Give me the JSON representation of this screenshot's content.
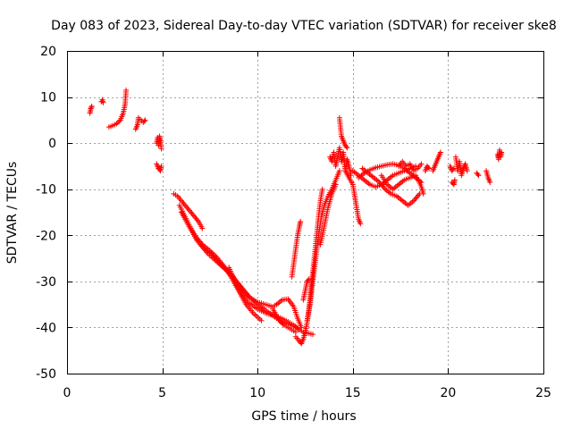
{
  "chart_data": {
    "type": "scatter",
    "title": "Day 083 of 2023, Sidereal Day-to-day VTEC variation (SDTVAR) for receiver ske8",
    "xlabel": "GPS time / hours",
    "ylabel": "SDTVAR / TECUs",
    "xlim": [
      0,
      25
    ],
    "ylim": [
      -50,
      20
    ],
    "xticks": [
      0,
      5,
      10,
      15,
      20,
      25
    ],
    "yticks": [
      -50,
      -40,
      -30,
      -20,
      -10,
      0,
      10,
      20
    ],
    "grid": true,
    "marker": "+",
    "color": "#ff0000",
    "series": [
      {
        "name": "SDTVAR",
        "segments": [
          [
            [
              1.2,
              6.5
            ],
            [
              1.25,
              7.5
            ],
            [
              1.3,
              8.0
            ]
          ],
          [
            [
              1.8,
              9.0
            ],
            [
              1.85,
              9.4
            ],
            [
              1.9,
              8.8
            ]
          ],
          [
            [
              2.2,
              3.5
            ],
            [
              2.4,
              3.8
            ],
            [
              2.6,
              4.2
            ],
            [
              2.8,
              5.0
            ],
            [
              2.95,
              6.5
            ],
            [
              3.05,
              8.5
            ],
            [
              3.1,
              11.5
            ]
          ],
          [
            [
              3.6,
              3.0
            ],
            [
              3.7,
              4.0
            ],
            [
              3.75,
              5.5
            ],
            [
              4.0,
              4.5
            ],
            [
              4.1,
              5.0
            ]
          ],
          [
            [
              4.7,
              0.0
            ],
            [
              4.75,
              1.2
            ],
            [
              4.8,
              -0.5
            ],
            [
              4.85,
              1.5
            ],
            [
              4.9,
              0.5
            ],
            [
              4.95,
              -1.2
            ]
          ],
          [
            [
              4.7,
              -4.5
            ],
            [
              4.8,
              -5.5
            ],
            [
              4.9,
              -6.0
            ],
            [
              4.95,
              -5.0
            ]
          ],
          [
            [
              5.6,
              -11.0
            ],
            [
              5.8,
              -11.5
            ],
            [
              6.0,
              -12.5
            ],
            [
              6.3,
              -14.0
            ],
            [
              6.6,
              -15.5
            ],
            [
              6.9,
              -17.0
            ],
            [
              7.1,
              -18.5
            ]
          ],
          [
            [
              5.9,
              -13.5
            ],
            [
              6.2,
              -16.0
            ],
            [
              6.5,
              -18.5
            ],
            [
              6.8,
              -20.5
            ],
            [
              7.1,
              -22.0
            ],
            [
              7.4,
              -23.0
            ],
            [
              7.8,
              -24.5
            ],
            [
              8.2,
              -26.5
            ],
            [
              8.6,
              -29.0
            ],
            [
              9.0,
              -32.0
            ],
            [
              9.4,
              -35.0
            ],
            [
              9.8,
              -37.0
            ],
            [
              10.2,
              -38.5
            ]
          ],
          [
            [
              6.0,
              -15.0
            ],
            [
              6.4,
              -18.0
            ],
            [
              6.8,
              -21.0
            ],
            [
              7.2,
              -23.0
            ],
            [
              7.6,
              -24.0
            ],
            [
              8.0,
              -26.0
            ],
            [
              8.4,
              -27.5
            ],
            [
              8.8,
              -29.5
            ],
            [
              9.2,
              -32.0
            ],
            [
              9.6,
              -33.5
            ],
            [
              10.0,
              -35.0
            ],
            [
              10.5,
              -36.5
            ],
            [
              11.0,
              -38.0
            ],
            [
              11.5,
              -39.0
            ],
            [
              12.0,
              -40.0
            ],
            [
              12.4,
              -41.0
            ],
            [
              12.9,
              -41.5
            ]
          ],
          [
            [
              7.0,
              -22.0
            ],
            [
              7.4,
              -24.0
            ],
            [
              7.8,
              -25.5
            ],
            [
              8.2,
              -27.0
            ],
            [
              8.6,
              -28.5
            ],
            [
              9.0,
              -30.5
            ],
            [
              9.3,
              -32.0
            ],
            [
              9.6,
              -33.5
            ],
            [
              10.0,
              -34.5
            ],
            [
              10.4,
              -35.0
            ],
            [
              10.8,
              -35.5
            ],
            [
              11.0,
              -35.0
            ],
            [
              11.3,
              -34.0
            ],
            [
              11.6,
              -33.8
            ],
            [
              11.9,
              -35.5
            ],
            [
              12.1,
              -38.0
            ],
            [
              12.3,
              -40.0
            ]
          ],
          [
            [
              8.5,
              -27.0
            ],
            [
              9.0,
              -31.5
            ],
            [
              9.5,
              -34.5
            ],
            [
              10.0,
              -36.0
            ],
            [
              10.5,
              -37.0
            ],
            [
              11.0,
              -37.5
            ],
            [
              11.5,
              -38.5
            ],
            [
              11.9,
              -39.5
            ],
            [
              12.2,
              -40.5
            ]
          ],
          [
            [
              10.8,
              -36.0
            ],
            [
              11.0,
              -37.5
            ],
            [
              11.2,
              -38.8
            ],
            [
              11.4,
              -39.5
            ],
            [
              11.6,
              -40.0
            ],
            [
              11.8,
              -40.5
            ],
            [
              12.0,
              -41.0
            ]
          ],
          [
            [
              12.0,
              -42.0
            ],
            [
              12.2,
              -43.0
            ],
            [
              12.3,
              -43.5
            ],
            [
              12.4,
              -42.5
            ],
            [
              12.5,
              -41.0
            ],
            [
              12.6,
              -39.0
            ],
            [
              12.7,
              -36.0
            ],
            [
              12.8,
              -32.0
            ],
            [
              12.9,
              -28.0
            ],
            [
              13.0,
              -24.0
            ],
            [
              13.1,
              -20.0
            ],
            [
              13.2,
              -16.0
            ],
            [
              13.3,
              -12.5
            ],
            [
              13.4,
              -10.0
            ]
          ],
          [
            [
              12.4,
              -34.0
            ],
            [
              12.5,
              -32.0
            ],
            [
              12.6,
              -30.0
            ],
            [
              12.7,
              -29.5
            ]
          ],
          [
            [
              11.8,
              -29.0
            ],
            [
              11.9,
              -26.0
            ],
            [
              12.0,
              -23.0
            ],
            [
              12.1,
              -20.0
            ],
            [
              12.2,
              -18.0
            ],
            [
              12.25,
              -17.0
            ]
          ],
          [
            [
              12.6,
              -38.5
            ],
            [
              12.75,
              -35.0
            ],
            [
              12.9,
              -30.0
            ],
            [
              13.05,
              -25.0
            ],
            [
              13.2,
              -20.0
            ],
            [
              13.35,
              -16.0
            ],
            [
              13.5,
              -13.5
            ],
            [
              13.7,
              -11.5
            ],
            [
              13.9,
              -10.0
            ],
            [
              14.1,
              -8.0
            ],
            [
              14.3,
              -6.0
            ]
          ],
          [
            [
              13.3,
              -22.0
            ],
            [
              13.5,
              -18.0
            ],
            [
              13.7,
              -14.0
            ],
            [
              13.9,
              -11.0
            ],
            [
              14.1,
              -9.0
            ]
          ],
          [
            [
              13.8,
              -3.0
            ],
            [
              13.9,
              -4.0
            ],
            [
              14.0,
              -2.0
            ],
            [
              14.1,
              -5.0
            ],
            [
              14.2,
              -3.0
            ],
            [
              14.3,
              -1.0
            ],
            [
              14.4,
              -4.0
            ],
            [
              14.5,
              -2.0
            ],
            [
              14.6,
              -6.0
            ],
            [
              14.7,
              -3.5
            ],
            [
              14.8,
              -5.0
            ],
            [
              14.9,
              -7.0
            ]
          ],
          [
            [
              14.3,
              5.5
            ],
            [
              14.4,
              1.5
            ],
            [
              14.5,
              0.5
            ],
            [
              14.6,
              -0.5
            ],
            [
              14.7,
              -1.0
            ]
          ],
          [
            [
              14.6,
              -6.0
            ],
            [
              14.8,
              -7.5
            ],
            [
              15.0,
              -9.0
            ],
            [
              15.1,
              -11.5
            ],
            [
              15.2,
              -14.0
            ],
            [
              15.3,
              -16.5
            ],
            [
              15.4,
              -17.5
            ]
          ],
          [
            [
              15.0,
              -6.0
            ],
            [
              15.3,
              -7.0
            ],
            [
              15.6,
              -8.0
            ],
            [
              15.9,
              -9.0
            ],
            [
              16.2,
              -9.5
            ],
            [
              16.5,
              -9.0
            ],
            [
              16.8,
              -8.0
            ],
            [
              17.1,
              -7.0
            ],
            [
              17.4,
              -6.5
            ],
            [
              17.7,
              -6.0
            ],
            [
              18.0,
              -5.5
            ],
            [
              18.3,
              -5.0
            ]
          ],
          [
            [
              15.5,
              -5.5
            ],
            [
              15.8,
              -6.5
            ],
            [
              16.1,
              -7.5
            ],
            [
              16.4,
              -8.5
            ],
            [
              16.7,
              -10.0
            ],
            [
              17.0,
              -11.0
            ],
            [
              17.3,
              -11.5
            ],
            [
              17.6,
              -12.5
            ],
            [
              17.9,
              -13.5
            ],
            [
              18.2,
              -12.5
            ],
            [
              18.5,
              -11.0
            ]
          ],
          [
            [
              15.3,
              -7.5
            ],
            [
              15.6,
              -6.5
            ],
            [
              15.9,
              -5.8
            ],
            [
              16.2,
              -5.3
            ],
            [
              16.5,
              -5.0
            ],
            [
              16.8,
              -4.7
            ],
            [
              17.1,
              -4.5
            ],
            [
              17.4,
              -4.8
            ],
            [
              17.7,
              -5.5
            ],
            [
              18.0,
              -6.5
            ],
            [
              18.3,
              -7.5
            ],
            [
              18.6,
              -8.5
            ]
          ],
          [
            [
              16.5,
              -7.0
            ],
            [
              16.8,
              -9.0
            ],
            [
              17.1,
              -10.0
            ],
            [
              17.4,
              -9.0
            ],
            [
              17.7,
              -8.0
            ],
            [
              18.0,
              -7.5
            ],
            [
              18.3,
              -7.0
            ],
            [
              18.6,
              -9.5
            ],
            [
              18.7,
              -11.0
            ]
          ],
          [
            [
              17.4,
              -5.0
            ],
            [
              17.6,
              -4.0
            ],
            [
              17.8,
              -5.0
            ],
            [
              18.0,
              -4.5
            ],
            [
              18.2,
              -6.0
            ],
            [
              18.4,
              -5.5
            ],
            [
              18.6,
              -4.5
            ]
          ],
          [
            [
              18.8,
              -6.0
            ],
            [
              18.9,
              -5.0
            ],
            [
              19.0,
              -5.5
            ]
          ],
          [
            [
              19.2,
              -6.0
            ],
            [
              19.3,
              -5.0
            ],
            [
              19.4,
              -4.0
            ],
            [
              19.5,
              -3.0
            ],
            [
              19.6,
              -2.0
            ]
          ],
          [
            [
              20.1,
              -5.0
            ],
            [
              20.2,
              -6.0
            ],
            [
              20.3,
              -5.5
            ]
          ],
          [
            [
              20.2,
              -8.5
            ],
            [
              20.3,
              -9.0
            ],
            [
              20.35,
              -8.0
            ]
          ],
          [
            [
              20.4,
              -3.0
            ],
            [
              20.5,
              -6.0
            ],
            [
              20.6,
              -4.0
            ],
            [
              20.7,
              -7.0
            ],
            [
              20.8,
              -5.5
            ],
            [
              20.9,
              -4.5
            ],
            [
              21.0,
              -6.0
            ]
          ],
          [
            [
              21.5,
              -6.5
            ],
            [
              21.6,
              -7.0
            ]
          ],
          [
            [
              22.0,
              -6.0
            ],
            [
              22.1,
              -7.5
            ],
            [
              22.2,
              -8.5
            ]
          ],
          [
            [
              22.6,
              -2.5
            ],
            [
              22.65,
              -3.5
            ],
            [
              22.7,
              -1.5
            ],
            [
              22.75,
              -3.0
            ],
            [
              22.8,
              -2.0
            ]
          ]
        ]
      }
    ]
  }
}
